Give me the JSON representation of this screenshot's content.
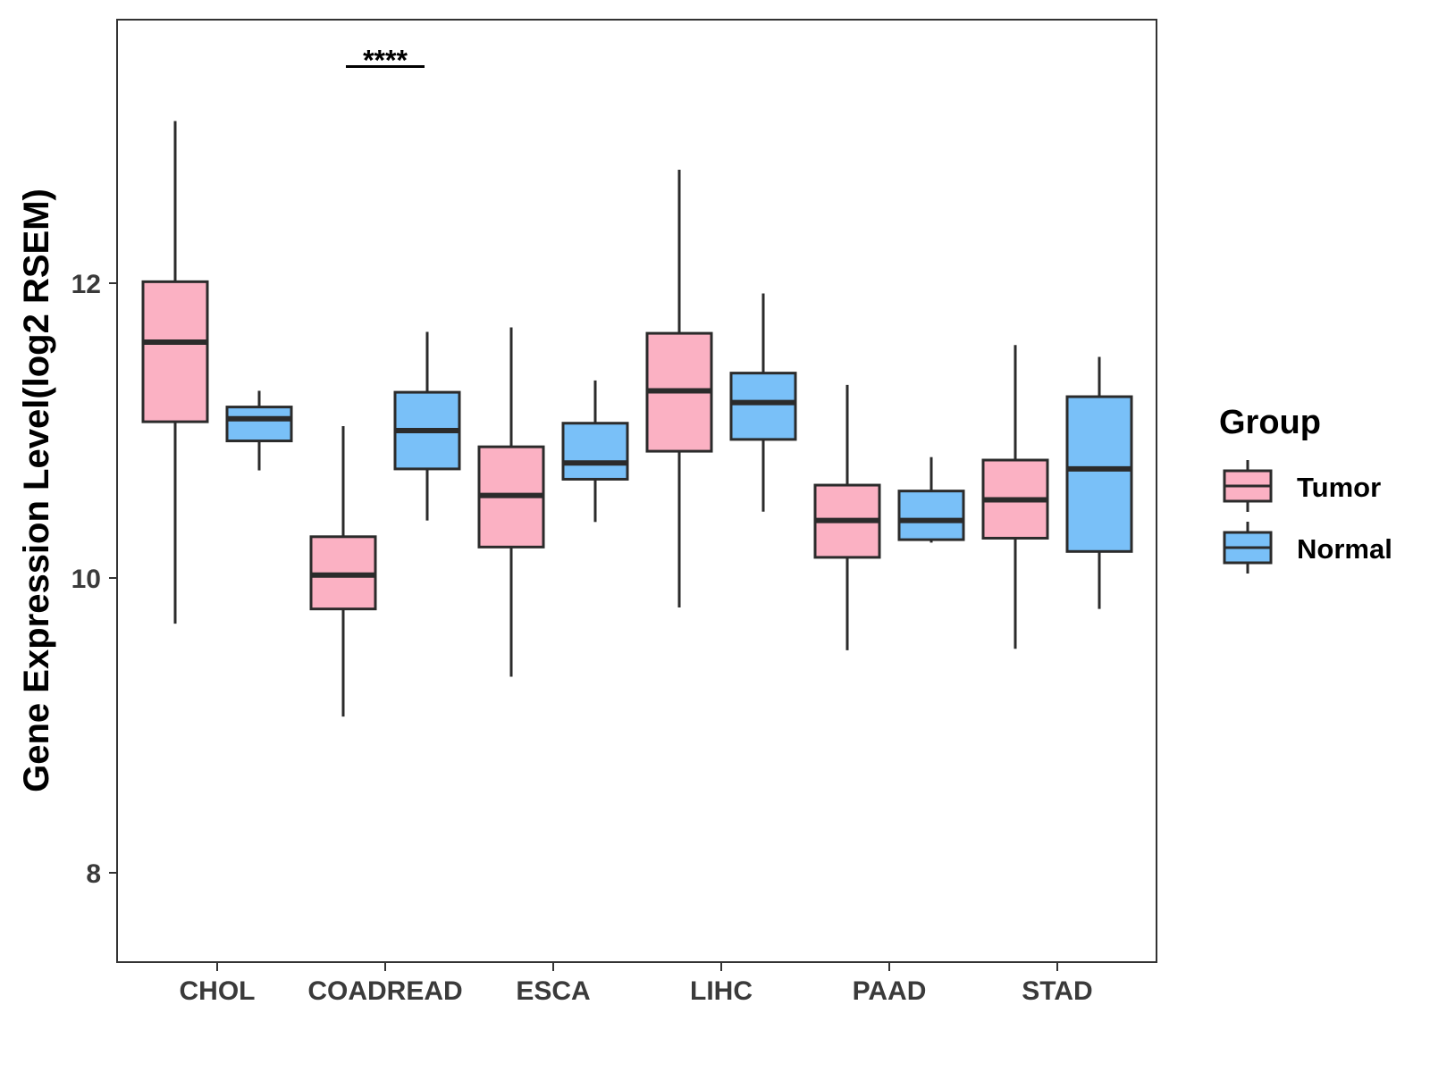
{
  "chart_data": {
    "type": "boxplot",
    "title": "",
    "xlabel": "",
    "ylabel": "Gene Expression Level(log2 RSEM)",
    "ylim": [
      7.4,
      13.8
    ],
    "yticks": [
      8,
      10,
      12
    ],
    "grid": false,
    "legend": {
      "title": "Group",
      "position": "right",
      "entries": [
        {
          "name": "Tumor",
          "color": "#FBB1C3"
        },
        {
          "name": "Normal",
          "color": "#79C0F8"
        }
      ]
    },
    "categories": [
      "CHOL",
      "COADREAD",
      "ESCA",
      "LIHC",
      "PAAD",
      "STAD"
    ],
    "series": [
      {
        "name": "Tumor",
        "color": "#FBB1C3",
        "boxes": [
          {
            "category": "CHOL",
            "min": 9.69,
            "q1": 11.06,
            "median": 11.6,
            "q3": 12.01,
            "max": 13.1
          },
          {
            "category": "COADREAD",
            "min": 9.06,
            "q1": 9.79,
            "median": 10.02,
            "q3": 10.28,
            "max": 11.03
          },
          {
            "category": "ESCA",
            "min": 9.33,
            "q1": 10.21,
            "median": 10.56,
            "q3": 10.89,
            "max": 11.7
          },
          {
            "category": "LIHC",
            "min": 9.8,
            "q1": 10.86,
            "median": 11.27,
            "q3": 11.66,
            "max": 12.77
          },
          {
            "category": "PAAD",
            "min": 9.51,
            "q1": 10.14,
            "median": 10.39,
            "q3": 10.63,
            "max": 11.31
          },
          {
            "category": "STAD",
            "min": 9.52,
            "q1": 10.27,
            "median": 10.53,
            "q3": 10.8,
            "max": 11.58
          }
        ]
      },
      {
        "name": "Normal",
        "color": "#79C0F8",
        "boxes": [
          {
            "category": "CHOL",
            "min": 10.73,
            "q1": 10.93,
            "median": 11.08,
            "q3": 11.16,
            "max": 11.27
          },
          {
            "category": "COADREAD",
            "min": 10.39,
            "q1": 10.74,
            "median": 11.0,
            "q3": 11.26,
            "max": 11.67
          },
          {
            "category": "ESCA",
            "min": 10.38,
            "q1": 10.67,
            "median": 10.78,
            "q3": 11.05,
            "max": 11.34
          },
          {
            "category": "LIHC",
            "min": 10.45,
            "q1": 10.94,
            "median": 11.19,
            "q3": 11.39,
            "max": 11.93
          },
          {
            "category": "PAAD",
            "min": 10.24,
            "q1": 10.26,
            "median": 10.39,
            "q3": 10.59,
            "max": 10.82
          },
          {
            "category": "STAD",
            "min": 9.79,
            "q1": 10.18,
            "median": 10.74,
            "q3": 11.23,
            "max": 11.5
          }
        ]
      }
    ],
    "annotations": [
      {
        "category": "COADREAD",
        "text": "****",
        "y": 13.47
      }
    ]
  }
}
